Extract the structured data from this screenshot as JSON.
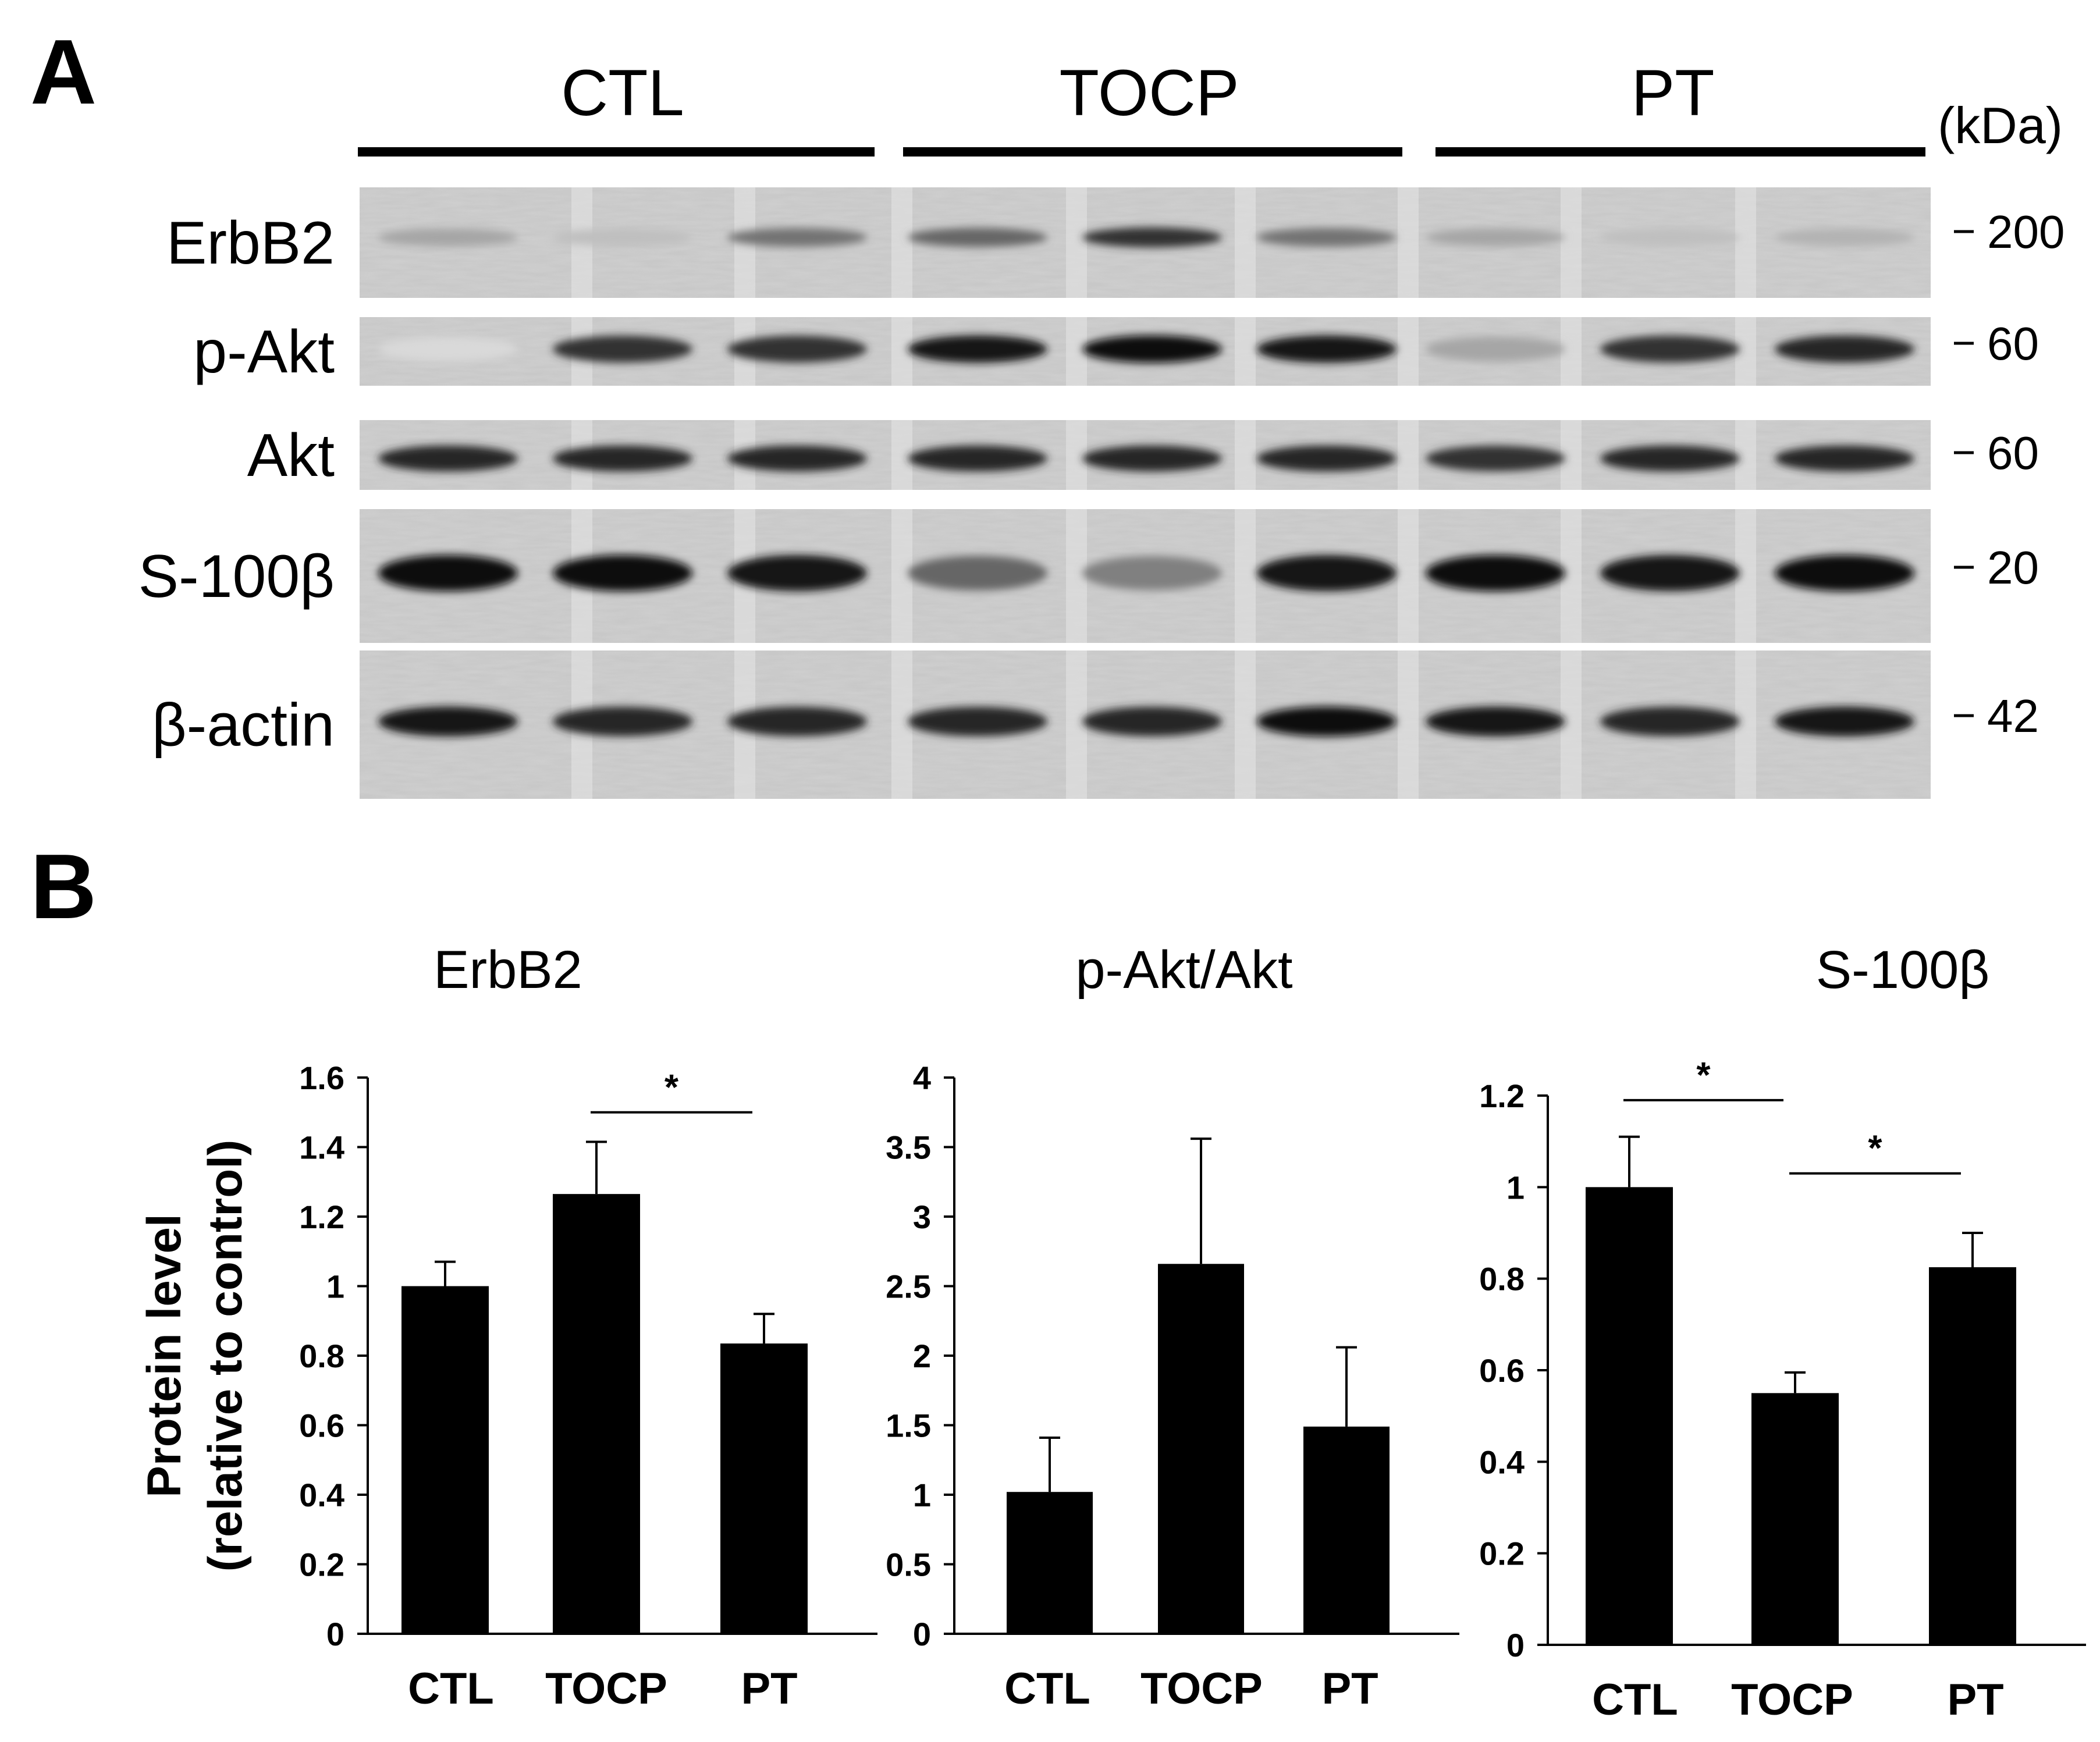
{
  "panel_a": {
    "label": "A",
    "groups": [
      "CTL",
      "TOCP",
      "PT"
    ],
    "kda_label": "(kDa)",
    "blots": [
      {
        "name": "ErbB2",
        "mw": "200",
        "lanes": [
          0.35,
          0.25,
          0.55,
          0.6,
          0.8,
          0.55,
          0.35,
          0.25,
          0.3
        ]
      },
      {
        "name": "p-Akt",
        "mw": "60",
        "lanes": [
          0.15,
          0.8,
          0.8,
          0.9,
          0.95,
          0.9,
          0.35,
          0.8,
          0.85
        ]
      },
      {
        "name": "Akt",
        "mw": "60",
        "lanes": [
          0.85,
          0.85,
          0.85,
          0.85,
          0.85,
          0.85,
          0.8,
          0.85,
          0.85
        ]
      },
      {
        "name": "S-100β",
        "mw": "20",
        "lanes": [
          0.95,
          0.95,
          0.9,
          0.6,
          0.5,
          0.9,
          0.95,
          0.9,
          0.95
        ]
      },
      {
        "name": "β-actin",
        "mw": "42",
        "lanes": [
          0.9,
          0.85,
          0.85,
          0.85,
          0.85,
          0.95,
          0.9,
          0.85,
          0.9
        ]
      }
    ]
  },
  "panel_b": {
    "label": "B"
  },
  "chart_data": [
    {
      "type": "bar",
      "title": "ErbB2",
      "categories": [
        "CTL",
        "TOCP",
        "PT"
      ],
      "values": [
        1.0,
        1.265,
        0.835
      ],
      "errors": [
        0.07,
        0.15,
        0.085
      ],
      "ylim": [
        0,
        1.6
      ],
      "yticks": [
        0,
        0.2,
        0.4,
        0.6,
        0.8,
        1,
        1.2,
        1.4,
        1.6
      ],
      "ylabel": [
        "Protein level",
        "(relative to control)"
      ],
      "significance": [
        {
          "from": 1,
          "to": 2,
          "label": "*",
          "y": 1.5
        }
      ]
    },
    {
      "type": "bar",
      "title": "p-Akt/Akt",
      "categories": [
        "CTL",
        "TOCP",
        "PT"
      ],
      "values": [
        1.02,
        2.66,
        1.49
      ],
      "errors": [
        0.39,
        0.9,
        0.57
      ],
      "ylim": [
        0,
        4
      ],
      "yticks": [
        0,
        0.5,
        1,
        1.5,
        2,
        2.5,
        3,
        3.5,
        4
      ],
      "significance": []
    },
    {
      "type": "bar",
      "title": "S-100β",
      "categories": [
        "CTL",
        "TOCP",
        "PT"
      ],
      "values": [
        1.0,
        0.55,
        0.825
      ],
      "errors": [
        0.11,
        0.045,
        0.075
      ],
      "ylim": [
        0,
        1.2
      ],
      "yticks": [
        0,
        0.2,
        0.4,
        0.6,
        0.8,
        1,
        1.2
      ],
      "significance": [
        {
          "from": 0,
          "to": 1,
          "label": "*",
          "y": 1.19
        },
        {
          "from": 1,
          "to": 2,
          "label": "*",
          "y": 1.03
        }
      ]
    }
  ]
}
